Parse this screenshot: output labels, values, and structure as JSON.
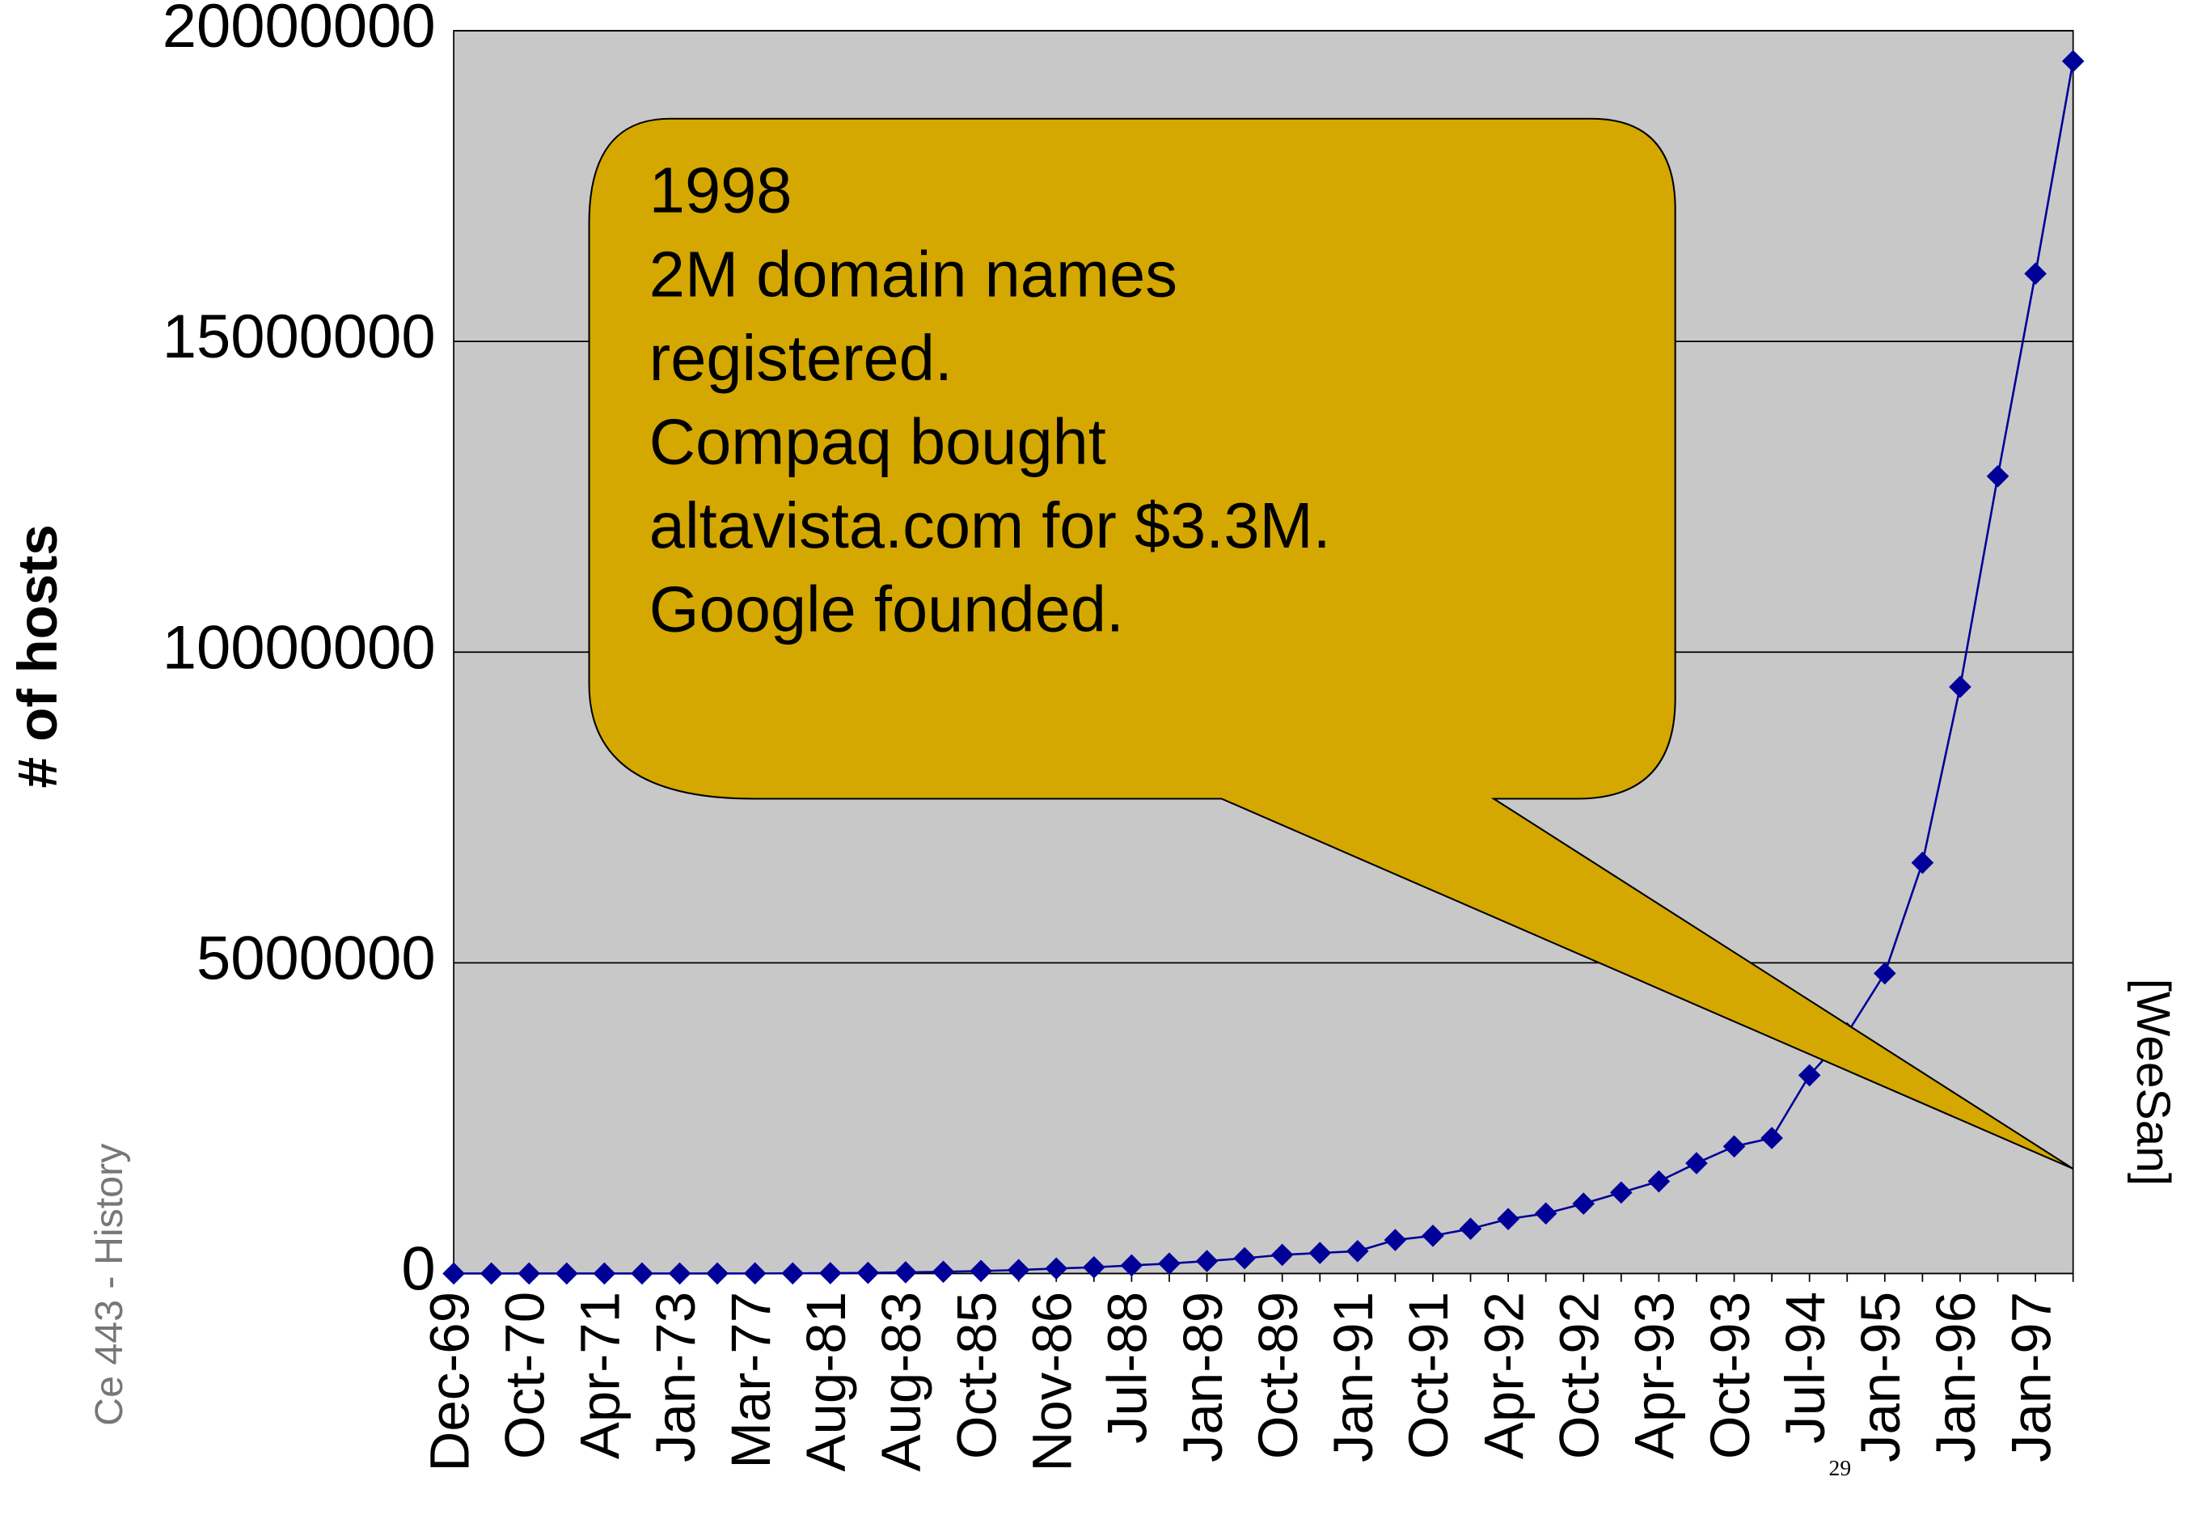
{
  "chart_data": {
    "type": "line",
    "ylabel": "# of hosts",
    "categories": [
      "Dec-69",
      null,
      "Oct-70",
      null,
      "Apr-71",
      null,
      "Jan-73",
      null,
      "Mar-77",
      null,
      "Aug-81",
      null,
      "Aug-83",
      null,
      "Oct-85",
      null,
      "Nov-86",
      null,
      "Jul-88",
      null,
      "Jan-89",
      null,
      "Oct-89",
      null,
      "Jan-91",
      null,
      "Oct-91",
      null,
      "Apr-92",
      null,
      "Oct-92",
      null,
      "Apr-93",
      null,
      "Oct-93",
      null,
      "Jul-94",
      null,
      "Jan-95",
      null,
      "Jan-96",
      null,
      "Jan-97",
      null
    ],
    "values": [
      4,
      9,
      13,
      23,
      62,
      111,
      235,
      562,
      1024,
      2308,
      5089,
      10000,
      19000,
      28000,
      40000,
      56000,
      80000,
      100000,
      130000,
      160000,
      200000,
      245000,
      300000,
      330000,
      360000,
      539000,
      607000,
      719000,
      876000,
      966000,
      1124000,
      1303000,
      1483000,
      1775000,
      2045000,
      2180000,
      3190000,
      3865000,
      4830000,
      6610000,
      9440000,
      12830000,
      16090000,
      19510000
    ],
    "color": "#000099",
    "ylim": [
      0,
      20000000
    ],
    "yticks": [
      0,
      5000000,
      10000000,
      15000000,
      20000000
    ],
    "grid": true,
    "annotation": [
      "1998",
      "2M domain names",
      "registered.",
      "Compaq bought",
      "altavista.com for $3.3M.",
      "Google founded."
    ],
    "footer": "Ce 443 - History",
    "source": "[WeeSan]",
    "page_number": "29"
  }
}
